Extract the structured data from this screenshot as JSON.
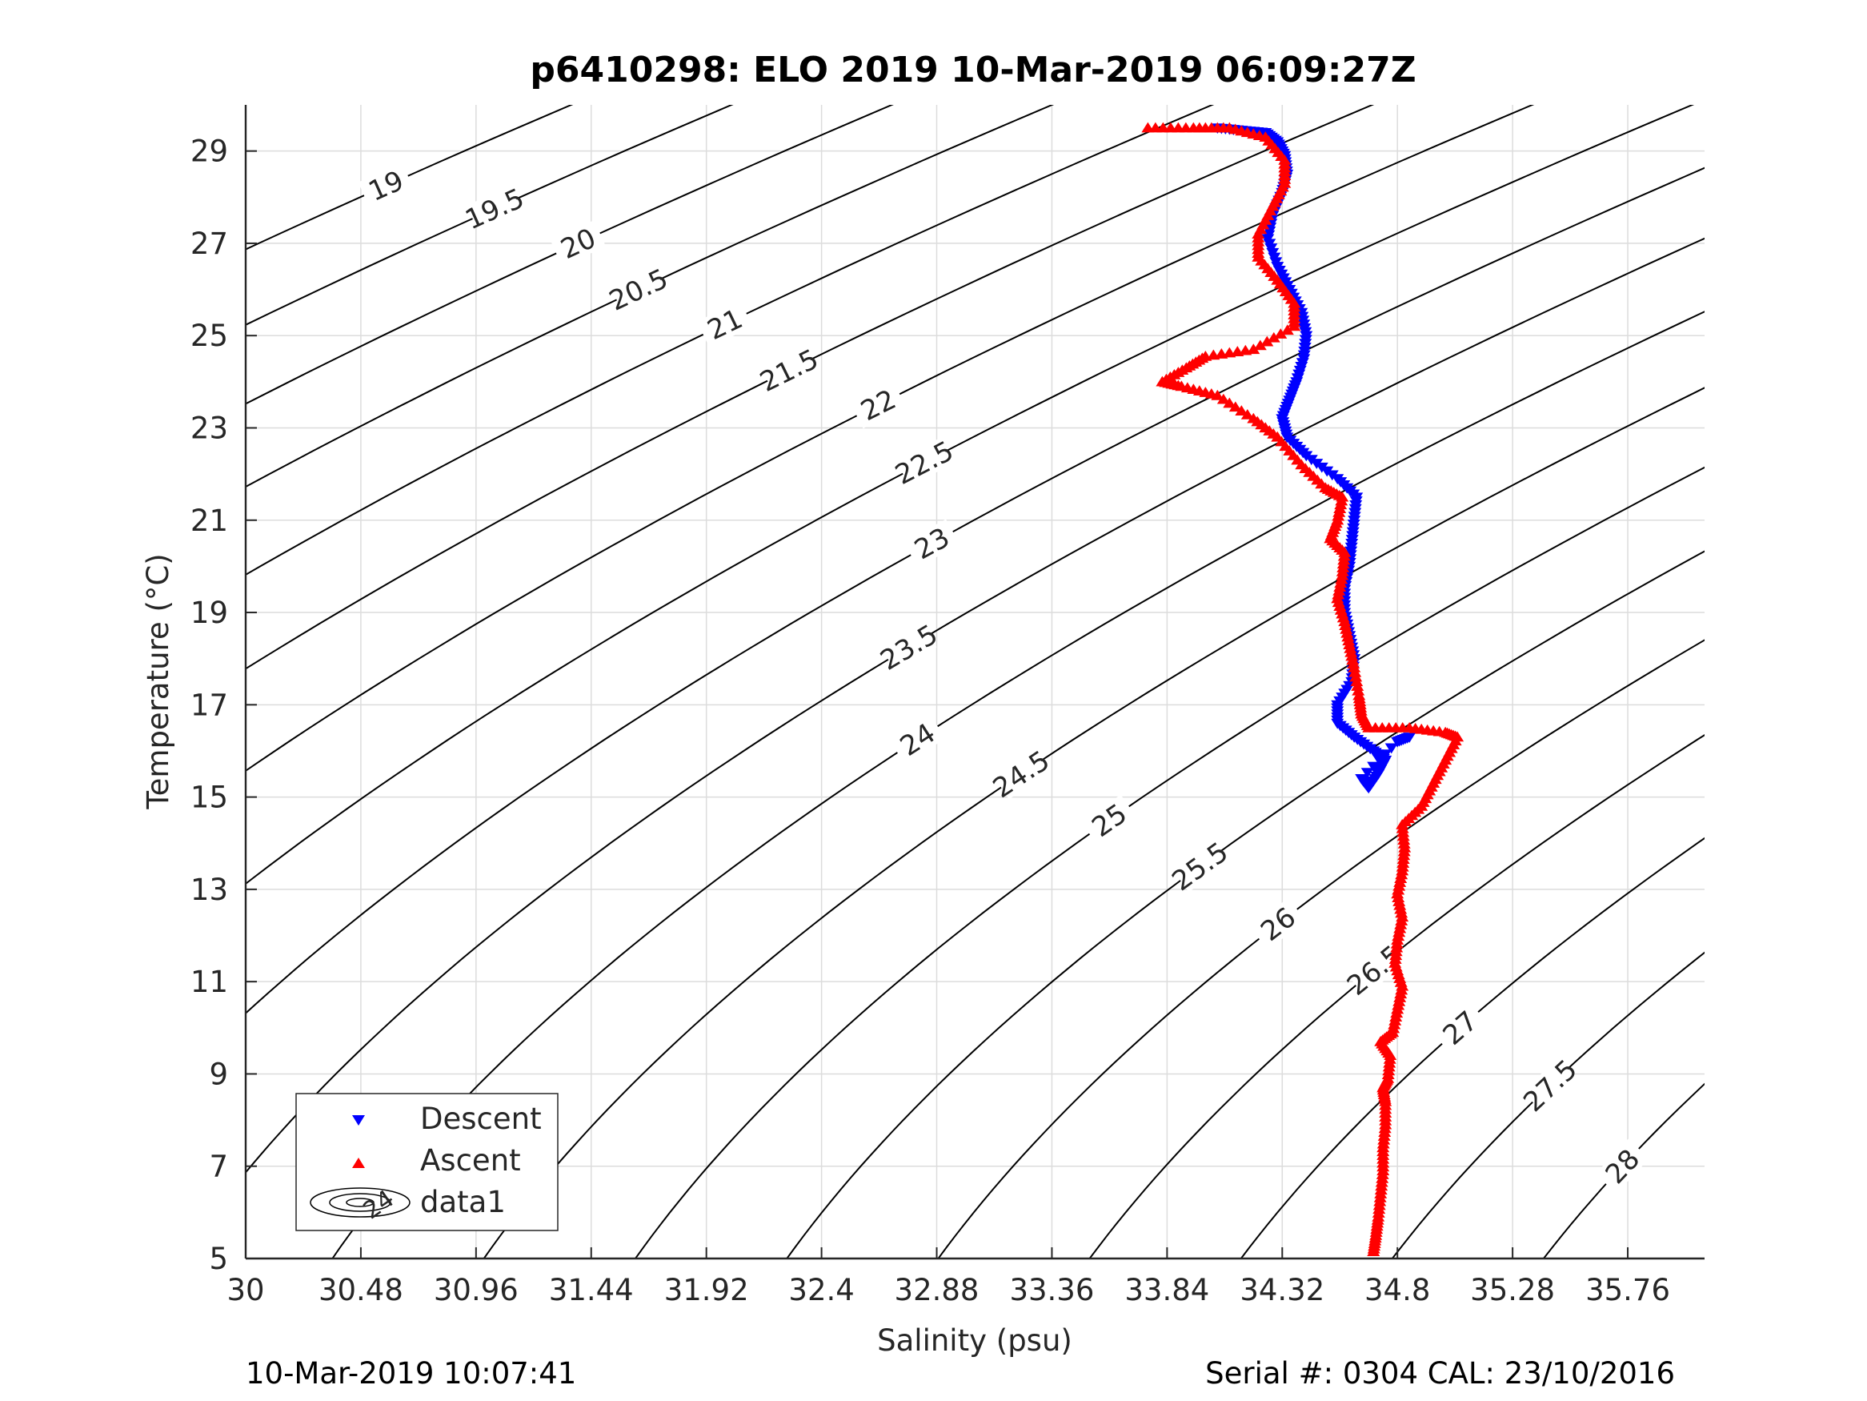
{
  "chart_data": {
    "type": "scatter",
    "title": "p6410298: ELO 2019 10-Mar-2019 06:09:27Z",
    "xlabel": "Salinity (psu)",
    "ylabel": "Temperature (°C)",
    "xlim": [
      30,
      36.08
    ],
    "ylim": [
      5,
      30
    ],
    "xticks": [
      30,
      30.48,
      30.96,
      31.44,
      31.92,
      32.4,
      32.88,
      33.36,
      33.84,
      34.32,
      34.8,
      35.28,
      35.76
    ],
    "xtick_labels": [
      "30",
      "30.48",
      "30.96",
      "31.44",
      "31.92",
      "32.4",
      "32.88",
      "33.36",
      "33.84",
      "34.32",
      "34.8",
      "35.28",
      "35.76"
    ],
    "yticks": [
      5,
      7,
      9,
      11,
      13,
      15,
      17,
      19,
      21,
      23,
      25,
      27,
      29
    ],
    "ytick_labels": [
      "5",
      "7",
      "9",
      "11",
      "13",
      "15",
      "17",
      "19",
      "21",
      "23",
      "25",
      "27",
      "29"
    ],
    "grid": true,
    "legend_position": "bottom-left",
    "contours": {
      "name": "data1",
      "color": "#000000",
      "levels": [
        19,
        19.5,
        20,
        20.5,
        21,
        21.5,
        22,
        22.5,
        23,
        23.5,
        24,
        24.5,
        25,
        25.5,
        26,
        26.5,
        27,
        27.5,
        28
      ]
    },
    "series": [
      {
        "name": "Descent",
        "marker": "triangle-down",
        "color": "#0000ff",
        "points": [
          [
            34.05,
            29.5
          ],
          [
            34.15,
            29.45
          ],
          [
            34.25,
            29.4
          ],
          [
            34.3,
            29.2
          ],
          [
            34.33,
            28.9
          ],
          [
            34.34,
            28.5
          ],
          [
            34.32,
            28.1
          ],
          [
            34.28,
            27.6
          ],
          [
            34.26,
            27.1
          ],
          [
            34.3,
            26.5
          ],
          [
            34.35,
            26.0
          ],
          [
            34.4,
            25.5
          ],
          [
            34.42,
            25.0
          ],
          [
            34.41,
            24.5
          ],
          [
            34.38,
            24.0
          ],
          [
            34.35,
            23.6
          ],
          [
            34.32,
            23.2
          ],
          [
            34.34,
            22.8
          ],
          [
            34.42,
            22.4
          ],
          [
            34.55,
            21.9
          ],
          [
            34.63,
            21.5
          ],
          [
            34.62,
            21.0
          ],
          [
            34.61,
            20.5
          ],
          [
            34.6,
            20.0
          ],
          [
            34.58,
            19.5
          ],
          [
            34.58,
            19.0
          ],
          [
            34.6,
            18.5
          ],
          [
            34.62,
            18.0
          ],
          [
            34.61,
            17.5
          ],
          [
            34.55,
            17.0
          ],
          [
            34.55,
            16.6
          ],
          [
            34.62,
            16.3
          ],
          [
            34.7,
            16.0
          ],
          [
            34.75,
            15.8
          ],
          [
            34.72,
            15.5
          ],
          [
            34.68,
            15.2
          ],
          [
            34.65,
            15.4
          ],
          [
            34.8,
            16.2
          ],
          [
            34.85,
            16.3
          ]
        ]
      },
      {
        "name": "Ascent",
        "marker": "triangle-up",
        "color": "#ff0000",
        "points": [
          [
            33.76,
            29.5
          ],
          [
            33.95,
            29.5
          ],
          [
            34.1,
            29.5
          ],
          [
            34.25,
            29.3
          ],
          [
            34.33,
            28.8
          ],
          [
            34.33,
            28.3
          ],
          [
            34.28,
            27.8
          ],
          [
            34.22,
            27.2
          ],
          [
            34.22,
            26.7
          ],
          [
            34.3,
            26.2
          ],
          [
            34.37,
            25.7
          ],
          [
            34.37,
            25.2
          ],
          [
            34.2,
            24.7
          ],
          [
            34.0,
            24.55
          ],
          [
            33.92,
            24.3
          ],
          [
            33.82,
            24.0
          ],
          [
            33.9,
            23.9
          ],
          [
            34.05,
            23.7
          ],
          [
            34.2,
            23.2
          ],
          [
            34.3,
            22.8
          ],
          [
            34.4,
            22.2
          ],
          [
            34.5,
            21.7
          ],
          [
            34.57,
            21.5
          ],
          [
            34.55,
            21.0
          ],
          [
            34.52,
            20.6
          ],
          [
            34.58,
            20.3
          ],
          [
            34.57,
            19.8
          ],
          [
            34.55,
            19.3
          ],
          [
            34.58,
            18.8
          ],
          [
            34.6,
            18.3
          ],
          [
            34.62,
            17.8
          ],
          [
            34.64,
            17.2
          ],
          [
            34.65,
            16.8
          ],
          [
            34.68,
            16.5
          ],
          [
            34.85,
            16.5
          ],
          [
            35.0,
            16.4
          ],
          [
            35.05,
            16.3
          ],
          [
            35.0,
            15.8
          ],
          [
            34.95,
            15.3
          ],
          [
            34.9,
            14.8
          ],
          [
            34.82,
            14.4
          ],
          [
            34.83,
            13.9
          ],
          [
            34.82,
            13.4
          ],
          [
            34.8,
            12.9
          ],
          [
            34.82,
            12.4
          ],
          [
            34.8,
            11.9
          ],
          [
            34.79,
            11.4
          ],
          [
            34.82,
            10.9
          ],
          [
            34.8,
            10.4
          ],
          [
            34.78,
            9.9
          ],
          [
            34.73,
            9.7
          ],
          [
            34.77,
            9.4
          ],
          [
            34.76,
            8.9
          ],
          [
            34.74,
            8.7
          ],
          [
            34.75,
            8.4
          ],
          [
            34.75,
            7.9
          ],
          [
            34.74,
            7.4
          ],
          [
            34.74,
            6.9
          ],
          [
            34.73,
            6.4
          ],
          [
            34.72,
            5.9
          ],
          [
            34.71,
            5.5
          ],
          [
            34.7,
            5.15
          ]
        ]
      }
    ]
  },
  "footer": {
    "timestamp": "10-Mar-2019 10:07:41",
    "serial": "Serial #: 0304  CAL: 23/10/2016"
  }
}
